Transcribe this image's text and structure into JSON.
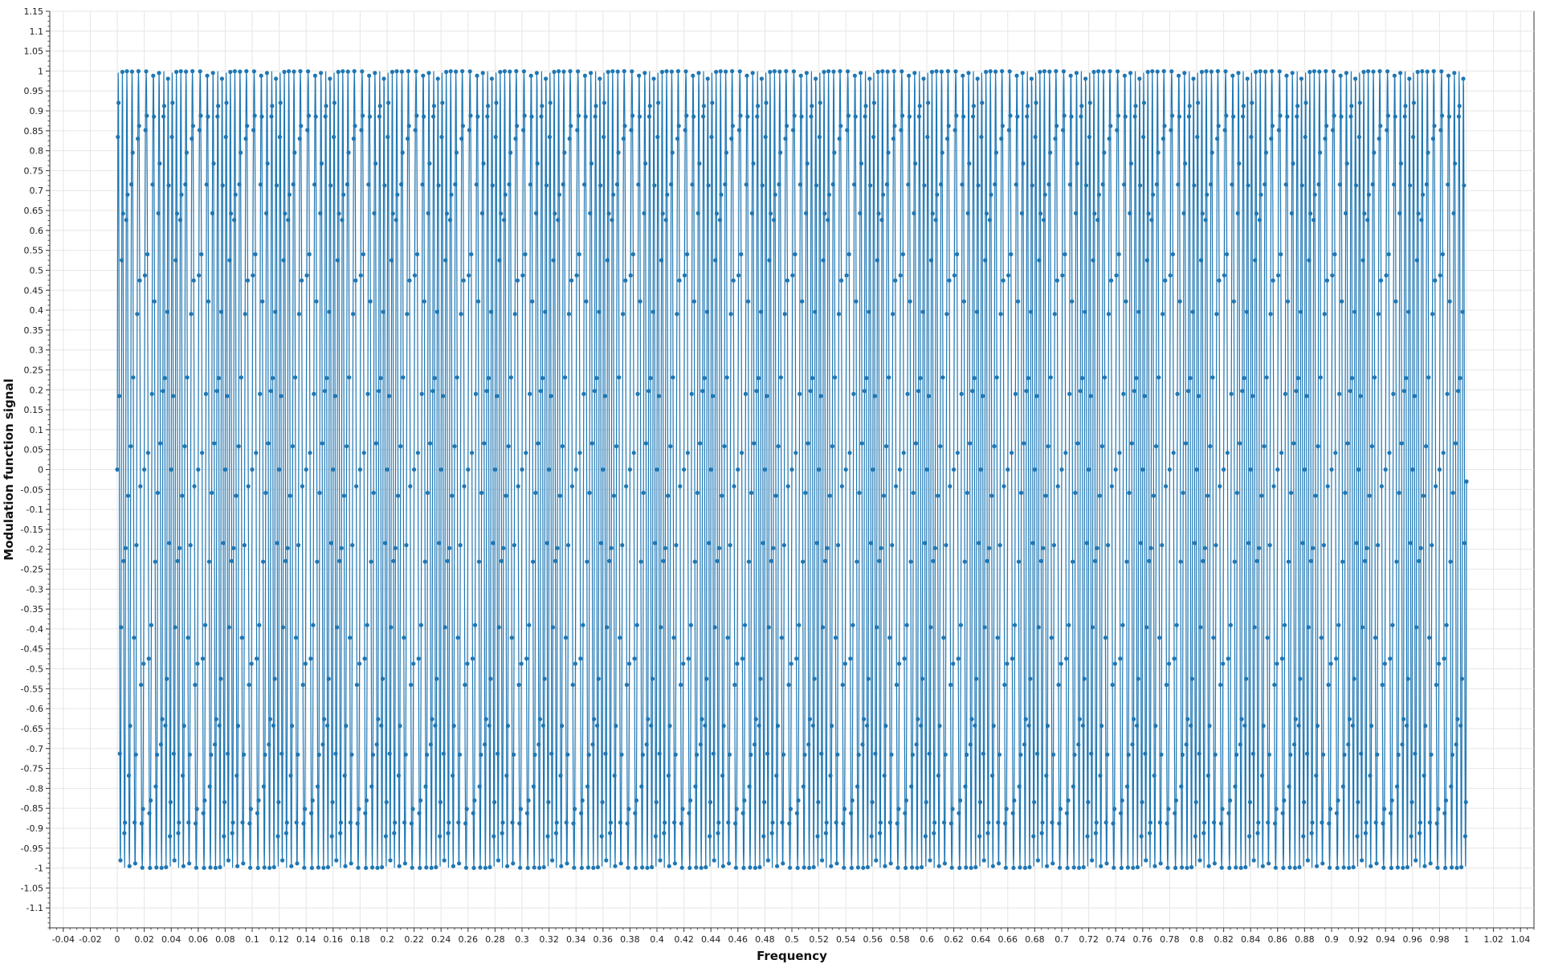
{
  "chart_data": {
    "type": "line",
    "title": "",
    "xlabel": "Frequency",
    "ylabel": "Modulation function signal",
    "xlim": [
      -0.05,
      1.05
    ],
    "ylim": [
      -1.15,
      1.15
    ],
    "x_ticks": [
      -0.04,
      -0.02,
      0,
      0.02,
      0.04,
      0.06,
      0.08,
      0.1,
      0.12,
      0.14,
      0.16,
      0.18,
      0.2,
      0.22,
      0.24,
      0.26,
      0.28,
      0.3,
      0.32,
      0.34,
      0.36,
      0.38,
      0.4,
      0.42,
      0.44,
      0.46,
      0.48,
      0.5,
      0.52,
      0.54,
      0.56,
      0.58,
      0.6,
      0.62,
      0.64,
      0.66,
      0.68,
      0.7,
      0.72,
      0.74,
      0.76,
      0.78,
      0.8,
      0.82,
      0.84,
      0.86,
      0.88,
      0.9,
      0.92,
      0.94,
      0.96,
      0.98,
      1,
      1.02,
      1.04
    ],
    "y_ticks": [
      -1.1,
      -1.05,
      -1,
      -0.95,
      -0.9,
      -0.85,
      -0.8,
      -0.75,
      -0.7,
      -0.65,
      -0.6,
      -0.55,
      -0.5,
      -0.45,
      -0.4,
      -0.35,
      -0.3,
      -0.25,
      -0.2,
      -0.15,
      -0.1,
      -0.05,
      0,
      0.05,
      0.1,
      0.15,
      0.2,
      0.25,
      0.3,
      0.35,
      0.4,
      0.45,
      0.5,
      0.55,
      0.6,
      0.65,
      0.7,
      0.75,
      0.8,
      0.85,
      0.9,
      0.95,
      1,
      1.05,
      1.1,
      1.15
    ],
    "grid": true,
    "legend": "none",
    "series": [
      {
        "color": "#1f77b4",
        "marker": "circle",
        "function": "sin(2*pi*f*x) with frequency slowly varying",
        "x_start": 0,
        "x_end": 1,
        "y_start": 0,
        "y_end": -0.03,
        "y_min": -1,
        "y_max": 1,
        "peak_x": [
          0.007,
          0.02,
          0.04,
          0.06,
          0.08,
          0.107,
          0.127,
          0.147,
          0.167,
          0.187,
          0.207,
          0.227,
          0.247,
          0.267,
          0.287,
          0.307,
          0.327,
          0.347,
          0.367,
          0.387,
          0.407,
          0.427,
          0.447,
          0.467,
          0.487,
          0.507,
          0.527,
          0.547,
          0.567,
          0.587,
          0.607,
          0.627,
          0.647,
          0.667,
          0.687,
          0.707,
          0.727,
          0.747,
          0.767,
          0.787,
          0.807,
          0.827,
          0.847,
          0.867,
          0.887,
          0.907,
          0.927,
          0.947,
          0.967,
          0.987
        ],
        "cycle_period": 0.02
      }
    ]
  }
}
